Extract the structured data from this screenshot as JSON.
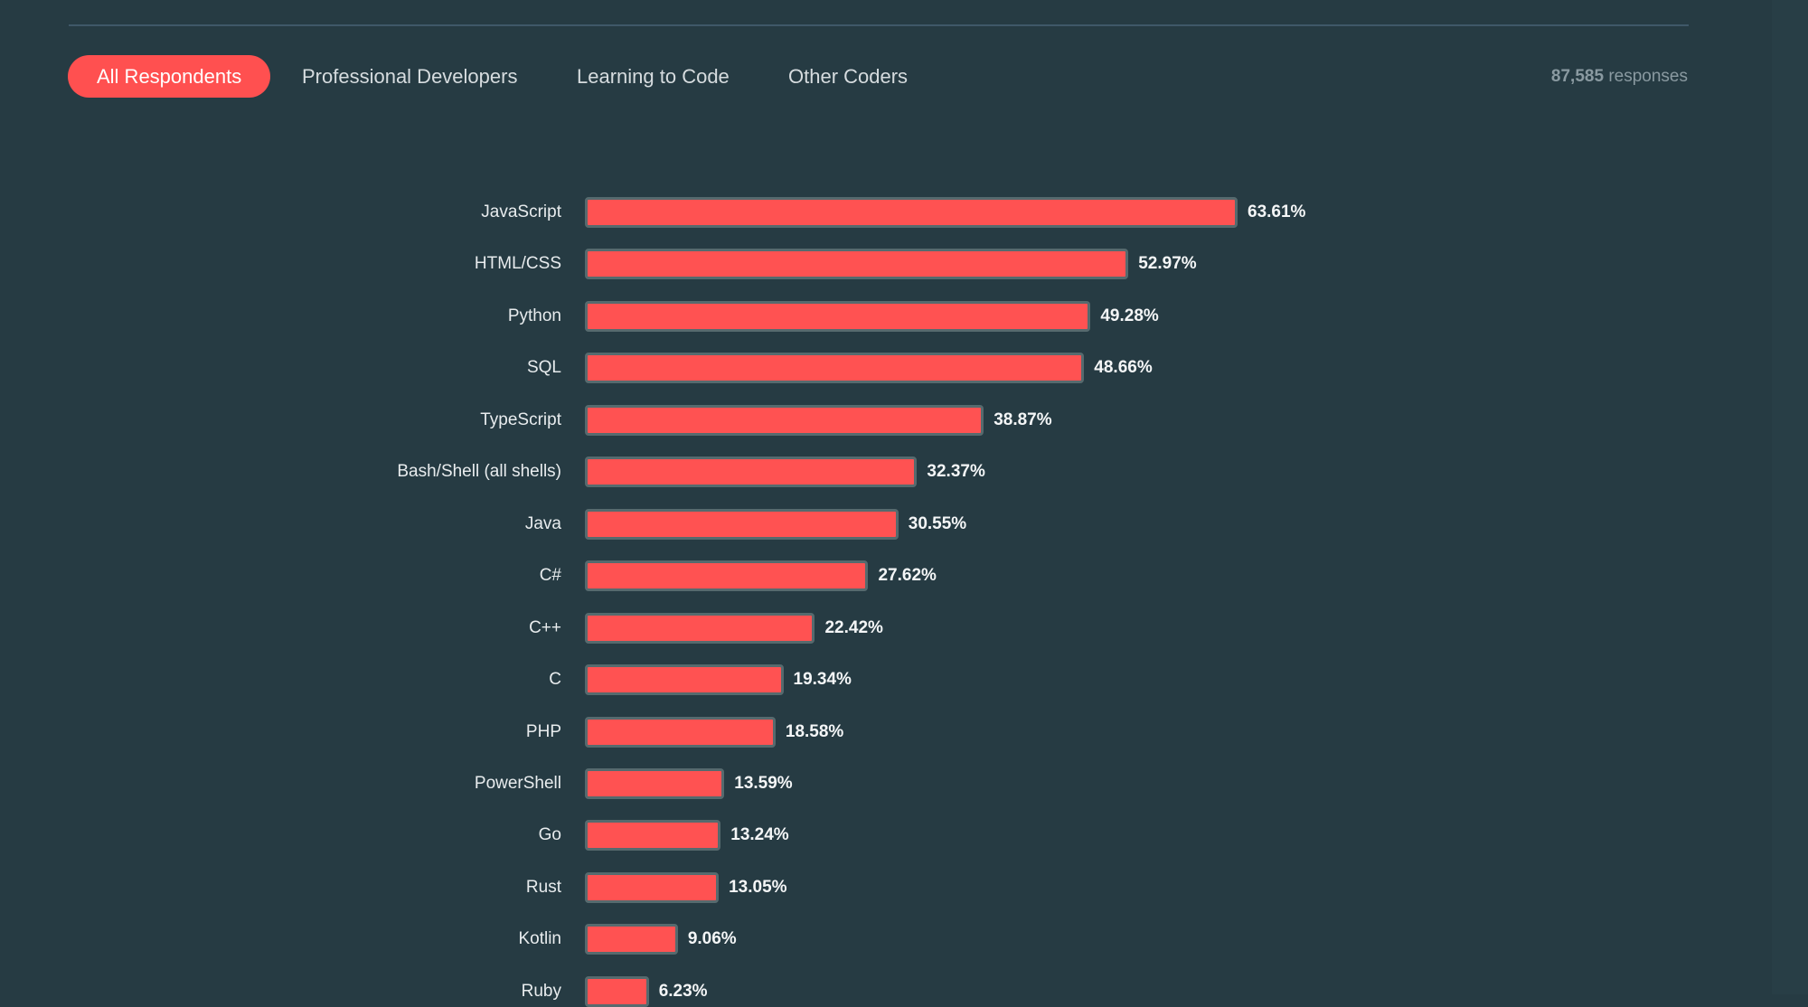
{
  "tabs": [
    {
      "label": "All Respondents",
      "active": true
    },
    {
      "label": "Professional Developers",
      "active": false
    },
    {
      "label": "Learning to Code",
      "active": false
    },
    {
      "label": "Other Coders",
      "active": false
    }
  ],
  "responses": {
    "count": "87,585",
    "suffix": "responses"
  },
  "colors": {
    "background": "#263b43",
    "bar": "#ff5252",
    "bar_border": "#566a6e",
    "active_tab": "#ff5050"
  },
  "chart_data": {
    "type": "bar",
    "orientation": "horizontal",
    "unit": "%",
    "categories": [
      "JavaScript",
      "HTML/CSS",
      "Python",
      "SQL",
      "TypeScript",
      "Bash/Shell (all shells)",
      "Java",
      "C#",
      "C++",
      "C",
      "PHP",
      "PowerShell",
      "Go",
      "Rust",
      "Kotlin",
      "Ruby"
    ],
    "values": [
      63.61,
      52.97,
      49.28,
      48.66,
      38.87,
      32.37,
      30.55,
      27.62,
      22.42,
      19.34,
      18.58,
      13.59,
      13.24,
      13.05,
      9.06,
      6.23
    ],
    "value_labels": [
      "63.61%",
      "52.97%",
      "49.28%",
      "48.66%",
      "38.87%",
      "32.37%",
      "30.55%",
      "27.62%",
      "22.42%",
      "19.34%",
      "18.58%",
      "13.59%",
      "13.24%",
      "13.05%",
      "9.06%",
      "6.23%"
    ],
    "grid": false
  }
}
